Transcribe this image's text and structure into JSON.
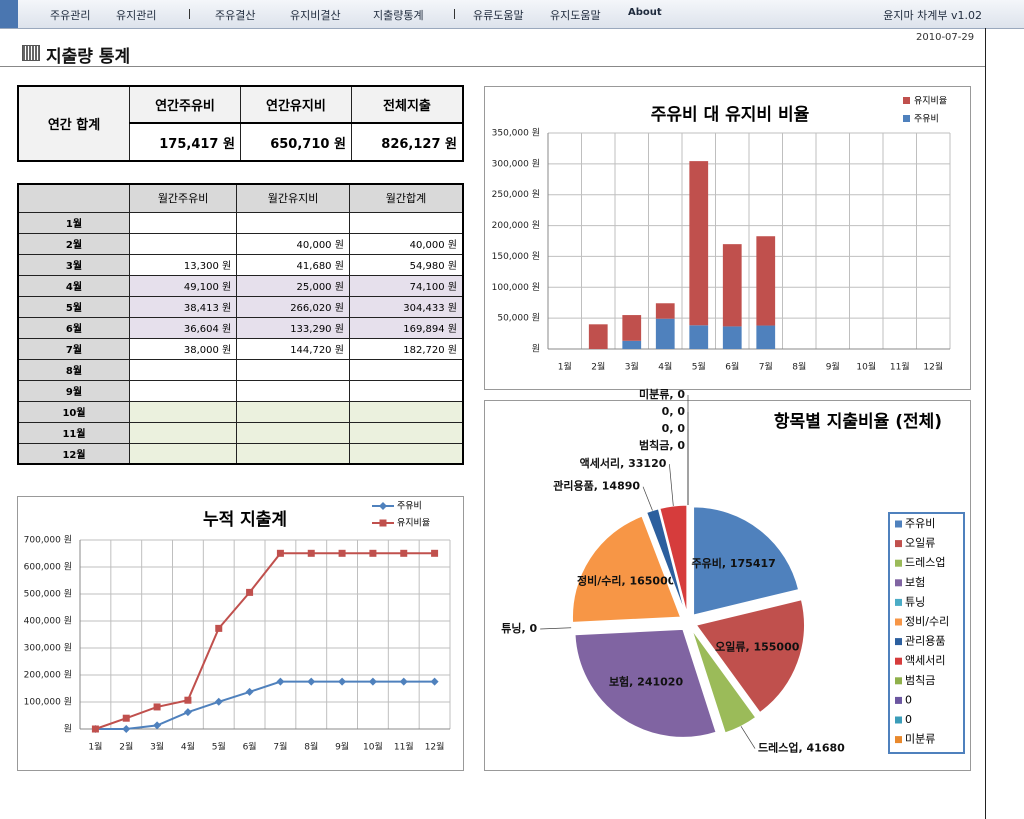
{
  "menu": [
    "주유관리",
    "유지관리",
    "주유결산",
    "유지비결산",
    "지출량통계",
    "유류도움말",
    "유지도움말",
    "About"
  ],
  "app_title": "윤지마 차계부 v1.02",
  "date": "2010-07-29",
  "page_title": "지출량 통계",
  "summary": {
    "label": "연간 합계",
    "headers": [
      "연간주유비",
      "연간유지비",
      "전체지출"
    ],
    "values": [
      "175,417 원",
      "650,710 원",
      "826,127 원"
    ]
  },
  "monthly": {
    "headers": [
      "월간주유비",
      "월간유지비",
      "월간합계"
    ],
    "rows": [
      [
        "1월",
        null,
        null,
        null
      ],
      [
        "2월",
        null,
        "40,000 원",
        "40,000 원"
      ],
      [
        "3월",
        "13,300 원",
        "41,680 원",
        "54,980 원"
      ],
      [
        "4월",
        "49,100 원",
        "25,000 원",
        "74,100 원"
      ],
      [
        "5월",
        "38,413 원",
        "266,020 원",
        "304,433 원"
      ],
      [
        "6월",
        "36,604 원",
        "133,290 원",
        "169,894 원"
      ],
      [
        "7월",
        "38,000 원",
        "144,720 원",
        "182,720 원"
      ],
      [
        "8월",
        null,
        null,
        null
      ],
      [
        "9월",
        null,
        null,
        null
      ],
      [
        "10월",
        null,
        null,
        null
      ],
      [
        "11월",
        null,
        null,
        null
      ],
      [
        "12월",
        null,
        null,
        null
      ]
    ]
  },
  "chart_data": [
    {
      "type": "stacked-bar",
      "title": "주유비 대 유지비 비율",
      "categories": [
        "1월",
        "2월",
        "3월",
        "4월",
        "5월",
        "6월",
        "7월",
        "8월",
        "9월",
        "10월",
        "11월",
        "12월"
      ],
      "series": [
        {
          "name": "주유비",
          "color": "#4f81bd",
          "values": [
            null,
            null,
            13300,
            49100,
            38413,
            36604,
            38000,
            null,
            null,
            null,
            null,
            null
          ]
        },
        {
          "name": "유지비율",
          "color": "#c0504d",
          "values": [
            null,
            40000,
            41680,
            25000,
            266020,
            133290,
            144720,
            null,
            null,
            null,
            null,
            null
          ]
        }
      ],
      "ylim": [
        0,
        350000
      ],
      "yticks": [
        {
          "value": 0,
          "label": "원"
        },
        {
          "value": 50000,
          "label": "50,000 원"
        },
        {
          "value": 100000,
          "label": "100,000 원"
        },
        {
          "value": 150000,
          "label": "150,000 원"
        },
        {
          "value": 200000,
          "label": "200,000 원"
        },
        {
          "value": 250000,
          "label": "250,000 원"
        },
        {
          "value": 300000,
          "label": "300,000 원"
        },
        {
          "value": 350000,
          "label": "350,000 원"
        }
      ],
      "grid": true,
      "legend": "top-right"
    },
    {
      "type": "line",
      "title": "누적 지출계",
      "categories": [
        "1월",
        "2월",
        "3월",
        "4월",
        "5월",
        "6월",
        "7월",
        "8월",
        "9월",
        "10월",
        "11월",
        "12월"
      ],
      "series": [
        {
          "name": "주유비",
          "color": "#4f81bd",
          "marker": "diamond",
          "values": [
            0,
            0,
            13300,
            62400,
            100813,
            137417,
            175417,
            175417,
            175417,
            175417,
            175417,
            175417
          ]
        },
        {
          "name": "유지비율",
          "color": "#c0504d",
          "marker": "square",
          "values": [
            0,
            40000,
            81680,
            106680,
            372700,
            505990,
            650710,
            650710,
            650710,
            650710,
            650710,
            650710
          ]
        }
      ],
      "ylim": [
        0,
        700000
      ],
      "yticks": [
        {
          "value": 0,
          "label": "원"
        },
        {
          "value": 100000,
          "label": "100,000 원"
        },
        {
          "value": 200000,
          "label": "200,000 원"
        },
        {
          "value": 300000,
          "label": "300,000 원"
        },
        {
          "value": 400000,
          "label": "400,000 원"
        },
        {
          "value": 500000,
          "label": "500,000 원"
        },
        {
          "value": 600000,
          "label": "600,000 원"
        },
        {
          "value": 700000,
          "label": "700,000 원"
        }
      ],
      "grid": true,
      "legend": "top-right"
    },
    {
      "type": "pie",
      "title": "항목별 지출비율 (전체)",
      "categories": [
        "주유비",
        "오일류",
        "드레스업",
        "보험",
        "튜닝",
        "정비/수리",
        "관리용품",
        "액세서리",
        "범칙금",
        "0",
        "0",
        "미분류"
      ],
      "values": [
        175417,
        155000,
        41680,
        241020,
        0,
        165000,
        14890,
        33120,
        0,
        0,
        0,
        0
      ],
      "value_labels": [
        "주유비, 175417",
        "오일류, 155000",
        "드레스업, 41680",
        "보험, 241020",
        "튜닝, 0",
        "정비/수리, 165000",
        "관리용품, 14890",
        "액세서리, 33120",
        "범칙금, 0",
        "0, 0",
        "0, 0",
        "미분류, 0"
      ],
      "colors": [
        "#4f81bd",
        "#c0504d",
        "#9bbb59",
        "#8064a2",
        "#4bacc6",
        "#f79646",
        "#2c5f9e",
        "#d63c3c",
        "#8fb04a",
        "#6b56a0",
        "#3a9cb8",
        "#e9892c"
      ],
      "legend": "right"
    }
  ]
}
